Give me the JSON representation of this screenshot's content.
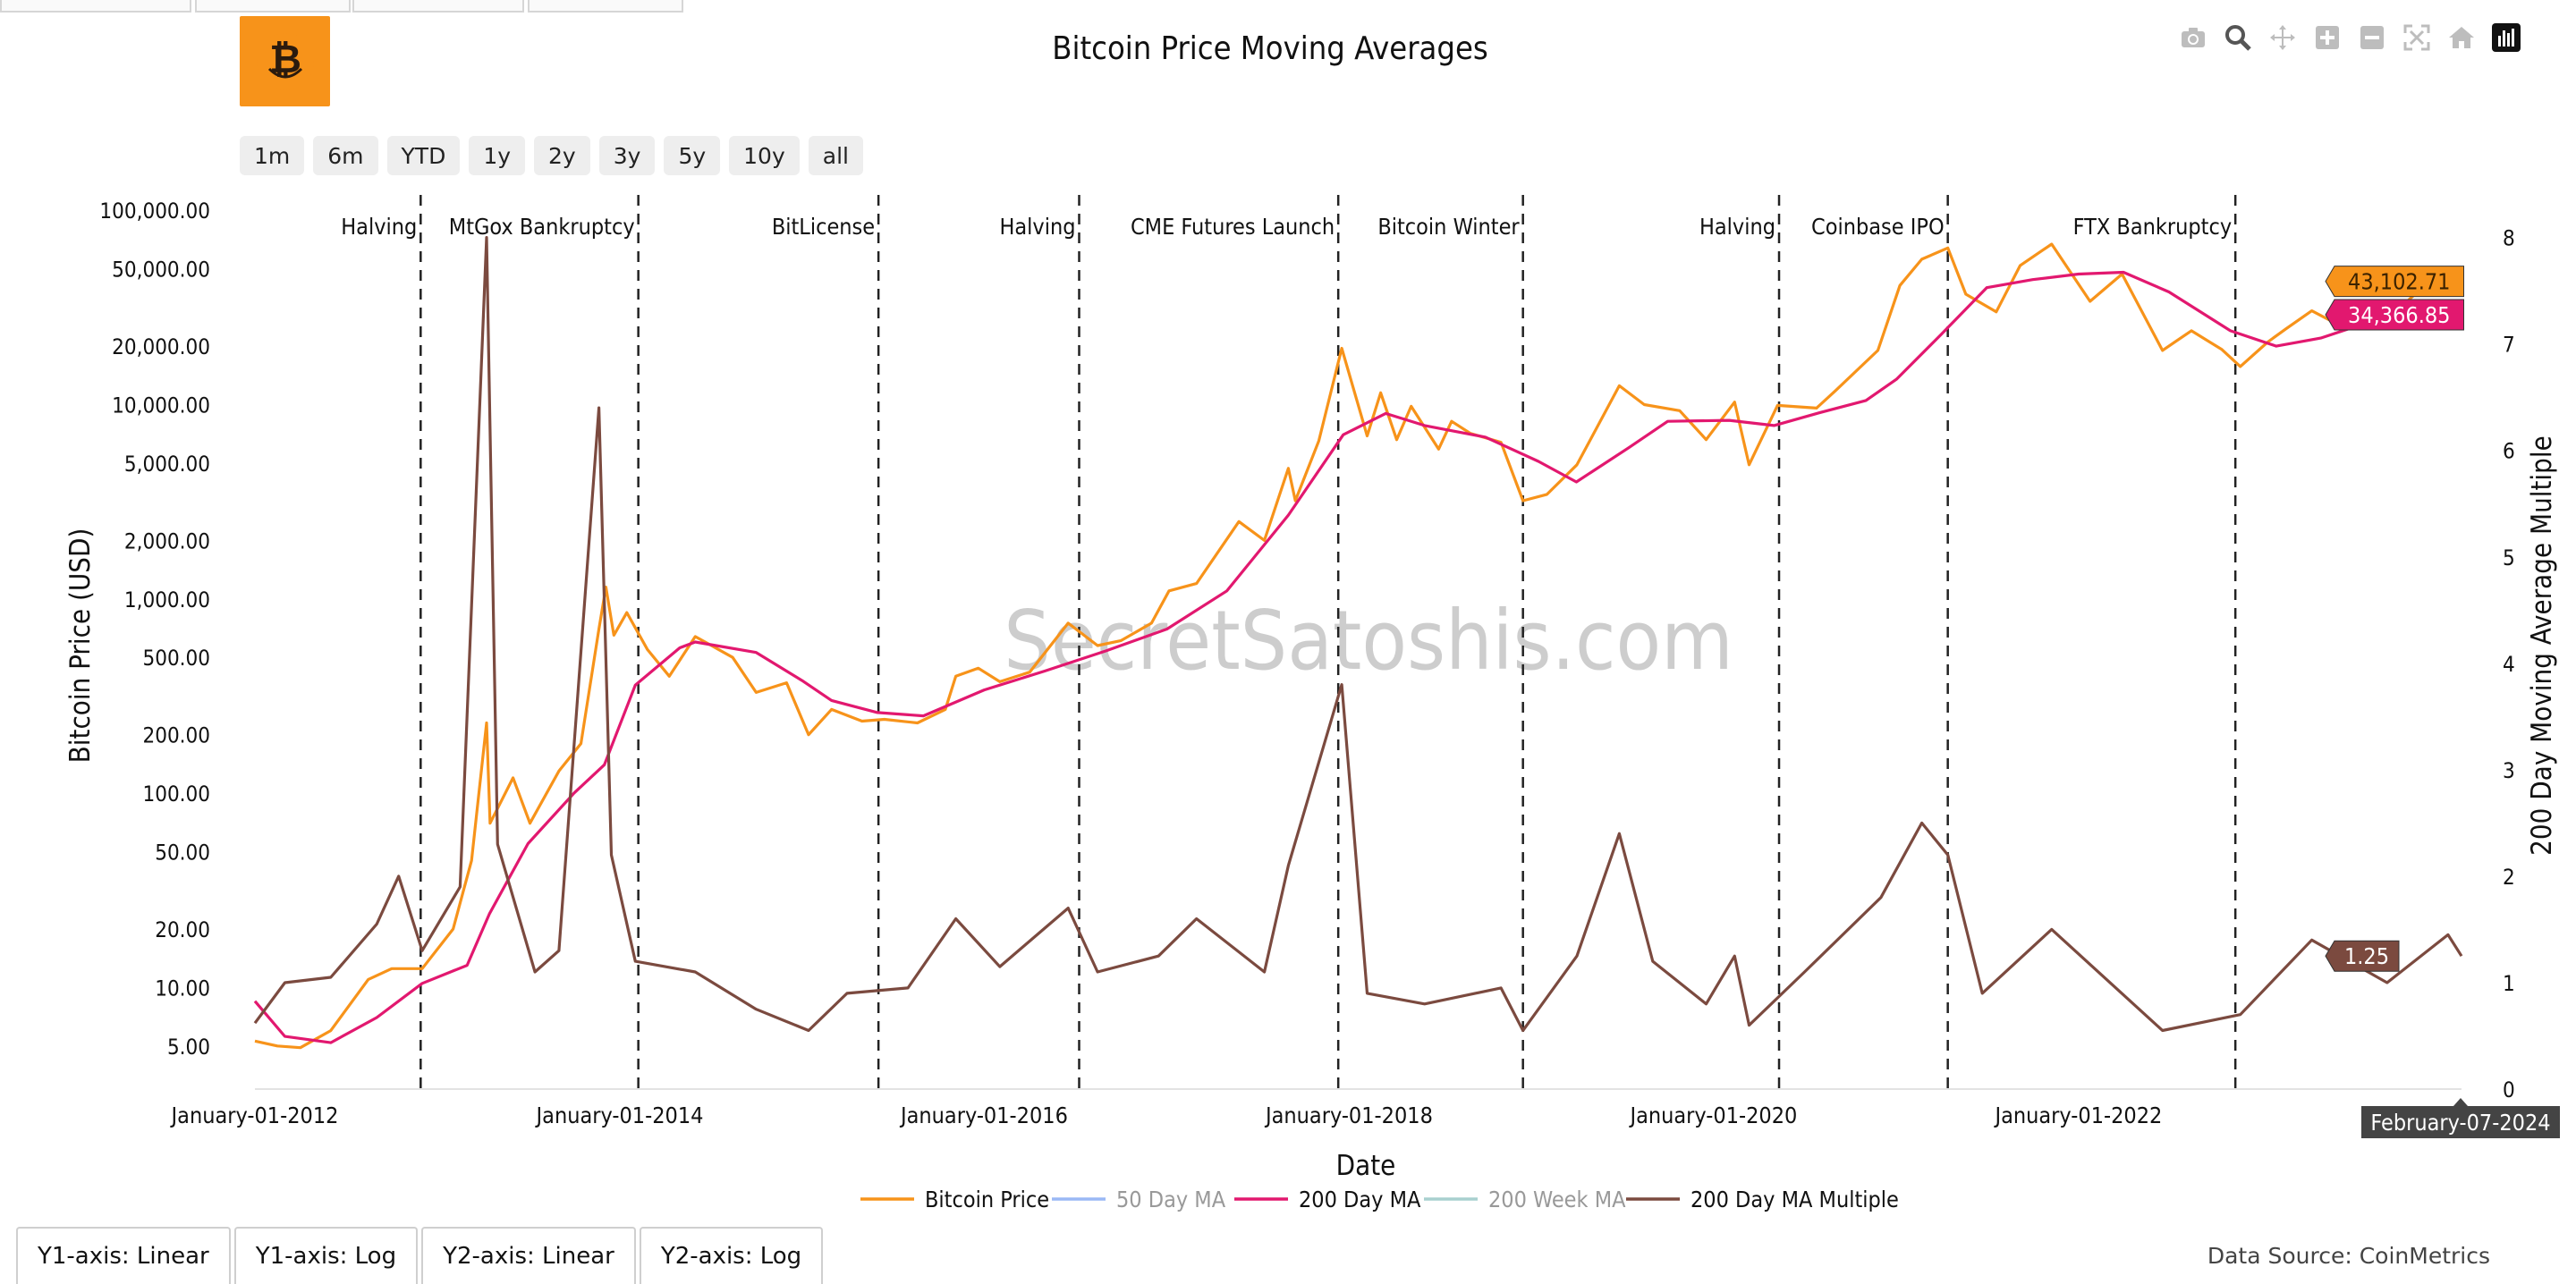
{
  "page": {
    "title": "Bitcoin Price Moving Averages",
    "data_source": "Data Source: CoinMetrics",
    "watermark": "SecretSatoshis.com",
    "range_buttons": [
      "1m",
      "6m",
      "YTD",
      "1y",
      "2y",
      "3y",
      "5y",
      "10y",
      "all"
    ],
    "axis_tabs": [
      "Y1-axis: Linear",
      "Y1-axis: Log",
      "Y2-axis: Linear",
      "Y2-axis: Log"
    ],
    "modebar_icons": [
      "camera-icon",
      "zoom-icon",
      "pan-icon",
      "zoom-in-icon",
      "zoom-out-icon",
      "autoscale-icon",
      "reset-axes-icon",
      "plotly-logo-icon"
    ],
    "logo_icon": "bitcoin-logo-icon"
  },
  "chart_data": {
    "type": "line",
    "title": "Bitcoin Price Moving Averages",
    "xlabel": "Date",
    "ylabel": "Bitcoin Price (USD)",
    "y2label": "200 Day Moving Average Multiple",
    "xlim": [
      "2012-01-01",
      "2024-02-07"
    ],
    "x_ticks": [
      "January-01-2012",
      "January-01-2014",
      "January-01-2016",
      "January-01-2018",
      "January-01-2020",
      "January-01-2022"
    ],
    "y_scale": "log",
    "ylim": [
      3,
      120000
    ],
    "y_ticks": [
      "5.00",
      "10.00",
      "20.00",
      "50.00",
      "100.00",
      "200.00",
      "500.00",
      "1,000.00",
      "2,000.00",
      "5,000.00",
      "10,000.00",
      "20,000.00",
      "50,000.00",
      "100,000.00"
    ],
    "y2lim": [
      0,
      8.4
    ],
    "y2_ticks": [
      "0",
      "1",
      "2",
      "3",
      "4",
      "5",
      "6",
      "7",
      "8"
    ],
    "legend": {
      "placement": "bottom",
      "entries": [
        {
          "name": "Bitcoin Price",
          "color": "#f7931a"
        },
        {
          "name": "50 Day MA",
          "color": "#9ab8f5"
        },
        {
          "name": "200 Day MA",
          "color": "#e2186f"
        },
        {
          "name": "200 Week MA",
          "color": "#a8d0cf"
        },
        {
          "name": "200 Day MA Multiple",
          "color": "#7b4a3f"
        }
      ]
    },
    "events": [
      {
        "date": "2012-11-28",
        "label": "Halving"
      },
      {
        "date": "2014-02-07",
        "label": "MtGox Bankruptcy"
      },
      {
        "date": "2015-06-03",
        "label": "BitLicense"
      },
      {
        "date": "2016-07-09",
        "label": "Halving"
      },
      {
        "date": "2017-12-10",
        "label": "CME Futures Launch"
      },
      {
        "date": "2018-12-15",
        "label": "Bitcoin Winter"
      },
      {
        "date": "2020-05-11",
        "label": "Halving"
      },
      {
        "date": "2021-04-14",
        "label": "Coinbase IPO"
      },
      {
        "date": "2022-11-11",
        "label": "FTX Bankruptcy"
      }
    ],
    "last_values": {
      "date_label": "February-07-2024",
      "price_label": "43,102.71",
      "ma200_label": "34,366.85",
      "multiple_label": "1.25"
    },
    "series": [
      {
        "name": "Bitcoin Price",
        "axis": "y",
        "color": "#f7931a",
        "points": [
          [
            "2012-01-01",
            5.3
          ],
          [
            "2012-02-15",
            5.0
          ],
          [
            "2012-04-01",
            4.9
          ],
          [
            "2012-06-01",
            6.0
          ],
          [
            "2012-08-15",
            11.0
          ],
          [
            "2012-10-01",
            12.5
          ],
          [
            "2012-12-01",
            12.5
          ],
          [
            "2013-02-01",
            20
          ],
          [
            "2013-03-10",
            45
          ],
          [
            "2013-04-09",
            230
          ],
          [
            "2013-04-16",
            70
          ],
          [
            "2013-06-01",
            120
          ],
          [
            "2013-07-05",
            70
          ],
          [
            "2013-09-01",
            130
          ],
          [
            "2013-10-15",
            180
          ],
          [
            "2013-11-20",
            700
          ],
          [
            "2013-12-04",
            1150
          ],
          [
            "2013-12-20",
            650
          ],
          [
            "2014-01-15",
            850
          ],
          [
            "2014-02-25",
            550
          ],
          [
            "2014-04-10",
            400
          ],
          [
            "2014-06-01",
            640
          ],
          [
            "2014-08-15",
            500
          ],
          [
            "2014-10-01",
            330
          ],
          [
            "2014-12-01",
            370
          ],
          [
            "2015-01-14",
            200
          ],
          [
            "2015-03-01",
            270
          ],
          [
            "2015-05-01",
            235
          ],
          [
            "2015-06-15",
            240
          ],
          [
            "2015-08-20",
            230
          ],
          [
            "2015-10-15",
            270
          ],
          [
            "2015-11-05",
            400
          ],
          [
            "2015-12-20",
            440
          ],
          [
            "2016-02-01",
            375
          ],
          [
            "2016-04-01",
            420
          ],
          [
            "2016-06-17",
            750
          ],
          [
            "2016-08-15",
            575
          ],
          [
            "2016-10-01",
            610
          ],
          [
            "2016-12-01",
            750
          ],
          [
            "2017-01-05",
            1100
          ],
          [
            "2017-03-01",
            1200
          ],
          [
            "2017-05-25",
            2500
          ],
          [
            "2017-07-15",
            2000
          ],
          [
            "2017-09-01",
            4700
          ],
          [
            "2017-09-15",
            3200
          ],
          [
            "2017-11-01",
            6500
          ],
          [
            "2017-12-17",
            19500
          ],
          [
            "2018-02-06",
            6900
          ],
          [
            "2018-03-05",
            11500
          ],
          [
            "2018-04-06",
            6600
          ],
          [
            "2018-05-05",
            9800
          ],
          [
            "2018-06-29",
            5900
          ],
          [
            "2018-07-25",
            8200
          ],
          [
            "2018-09-01",
            7100
          ],
          [
            "2018-11-01",
            6400
          ],
          [
            "2018-12-15",
            3200
          ],
          [
            "2019-02-01",
            3450
          ],
          [
            "2019-04-02",
            4900
          ],
          [
            "2019-06-26",
            12500
          ],
          [
            "2019-08-15",
            10000
          ],
          [
            "2019-10-25",
            9300
          ],
          [
            "2019-12-17",
            6600
          ],
          [
            "2020-02-12",
            10300
          ],
          [
            "2020-03-12",
            4900
          ],
          [
            "2020-05-08",
            9900
          ],
          [
            "2020-07-25",
            9600
          ],
          [
            "2020-09-01",
            11800
          ],
          [
            "2020-11-25",
            19000
          ],
          [
            "2021-01-08",
            41000
          ],
          [
            "2021-02-21",
            56000
          ],
          [
            "2021-04-14",
            64000
          ],
          [
            "2021-05-20",
            37000
          ],
          [
            "2021-07-20",
            30000
          ],
          [
            "2021-09-06",
            52000
          ],
          [
            "2021-11-08",
            67000
          ],
          [
            "2022-01-24",
            34000
          ],
          [
            "2022-03-29",
            47000
          ],
          [
            "2022-06-18",
            19000
          ],
          [
            "2022-08-15",
            24000
          ],
          [
            "2022-10-15",
            19200
          ],
          [
            "2022-11-21",
            15700
          ],
          [
            "2023-01-15",
            21000
          ],
          [
            "2023-02-20",
            24500
          ],
          [
            "2023-04-13",
            30400
          ],
          [
            "2023-06-15",
            25000
          ],
          [
            "2023-07-15",
            30300
          ],
          [
            "2023-09-11",
            25100
          ],
          [
            "2023-10-24",
            34500
          ],
          [
            "2023-12-08",
            44000
          ],
          [
            "2024-01-11",
            46500
          ],
          [
            "2024-01-23",
            39500
          ],
          [
            "2024-02-07",
            43102.71
          ]
        ]
      },
      {
        "name": "200 Day MA",
        "axis": "y",
        "color": "#e2186f",
        "points": [
          [
            "2012-01-01",
            8.5
          ],
          [
            "2012-03-01",
            5.6
          ],
          [
            "2012-06-01",
            5.2
          ],
          [
            "2012-09-01",
            7.0
          ],
          [
            "2012-12-01",
            10.5
          ],
          [
            "2013-03-01",
            13
          ],
          [
            "2013-04-15",
            24
          ],
          [
            "2013-07-01",
            55
          ],
          [
            "2013-10-01",
            100
          ],
          [
            "2013-12-01",
            140
          ],
          [
            "2014-02-01",
            360
          ],
          [
            "2014-05-01",
            560
          ],
          [
            "2014-06-01",
            600
          ],
          [
            "2014-10-01",
            530
          ],
          [
            "2015-01-01",
            380
          ],
          [
            "2015-03-01",
            300
          ],
          [
            "2015-06-01",
            260
          ],
          [
            "2015-09-01",
            250
          ],
          [
            "2016-01-01",
            340
          ],
          [
            "2016-05-01",
            425
          ],
          [
            "2016-09-01",
            540
          ],
          [
            "2017-01-01",
            700
          ],
          [
            "2017-05-01",
            1100
          ],
          [
            "2017-09-01",
            2700
          ],
          [
            "2017-12-20",
            7000
          ],
          [
            "2018-03-15",
            9000
          ],
          [
            "2018-06-01",
            7800
          ],
          [
            "2018-10-01",
            6800
          ],
          [
            "2019-01-15",
            5100
          ],
          [
            "2019-04-01",
            4000
          ],
          [
            "2019-07-15",
            6000
          ],
          [
            "2019-10-01",
            8200
          ],
          [
            "2020-02-01",
            8300
          ],
          [
            "2020-05-01",
            7800
          ],
          [
            "2020-08-01",
            9100
          ],
          [
            "2020-11-01",
            10500
          ],
          [
            "2021-01-01",
            13500
          ],
          [
            "2021-04-01",
            23000
          ],
          [
            "2021-07-01",
            40000
          ],
          [
            "2021-10-01",
            44000
          ],
          [
            "2022-01-01",
            47000
          ],
          [
            "2022-04-01",
            48000
          ],
          [
            "2022-07-01",
            38000
          ],
          [
            "2022-11-01",
            24000
          ],
          [
            "2023-02-01",
            20000
          ],
          [
            "2023-05-01",
            22000
          ],
          [
            "2023-09-01",
            28000
          ],
          [
            "2024-02-07",
            34366.85
          ]
        ]
      },
      {
        "name": "200 Day MA Multiple",
        "axis": "y2",
        "color": "#7b4a3f",
        "points": [
          [
            "2012-01-01",
            0.62
          ],
          [
            "2012-03-01",
            1.0
          ],
          [
            "2012-06-01",
            1.05
          ],
          [
            "2012-09-01",
            1.55
          ],
          [
            "2012-10-15",
            2.0
          ],
          [
            "2012-12-01",
            1.3
          ],
          [
            "2013-02-15",
            1.9
          ],
          [
            "2013-04-09",
            8.0
          ],
          [
            "2013-05-01",
            2.3
          ],
          [
            "2013-07-15",
            1.1
          ],
          [
            "2013-09-01",
            1.3
          ],
          [
            "2013-11-20",
            6.4
          ],
          [
            "2013-12-15",
            2.2
          ],
          [
            "2014-02-01",
            1.2
          ],
          [
            "2014-06-01",
            1.1
          ],
          [
            "2014-10-01",
            0.75
          ],
          [
            "2015-01-14",
            0.55
          ],
          [
            "2015-04-01",
            0.9
          ],
          [
            "2015-08-01",
            0.95
          ],
          [
            "2015-11-05",
            1.6
          ],
          [
            "2016-02-01",
            1.15
          ],
          [
            "2016-06-17",
            1.7
          ],
          [
            "2016-08-15",
            1.1
          ],
          [
            "2016-12-15",
            1.25
          ],
          [
            "2017-03-01",
            1.6
          ],
          [
            "2017-07-15",
            1.1
          ],
          [
            "2017-09-01",
            2.1
          ],
          [
            "2017-12-17",
            3.8
          ],
          [
            "2018-02-06",
            0.9
          ],
          [
            "2018-06-01",
            0.8
          ],
          [
            "2018-11-01",
            0.95
          ],
          [
            "2018-12-15",
            0.55
          ],
          [
            "2019-04-02",
            1.25
          ],
          [
            "2019-06-26",
            2.4
          ],
          [
            "2019-09-01",
            1.2
          ],
          [
            "2019-12-17",
            0.8
          ],
          [
            "2020-02-12",
            1.25
          ],
          [
            "2020-03-12",
            0.6
          ],
          [
            "2020-07-01",
            1.1
          ],
          [
            "2020-12-01",
            1.8
          ],
          [
            "2021-02-21",
            2.5
          ],
          [
            "2021-04-14",
            2.2
          ],
          [
            "2021-06-22",
            0.9
          ],
          [
            "2021-11-08",
            1.5
          ],
          [
            "2022-06-18",
            0.55
          ],
          [
            "2022-11-21",
            0.7
          ],
          [
            "2023-04-13",
            1.4
          ],
          [
            "2023-09-11",
            1.0
          ],
          [
            "2024-01-11",
            1.45
          ],
          [
            "2024-02-07",
            1.25
          ]
        ]
      }
    ]
  }
}
